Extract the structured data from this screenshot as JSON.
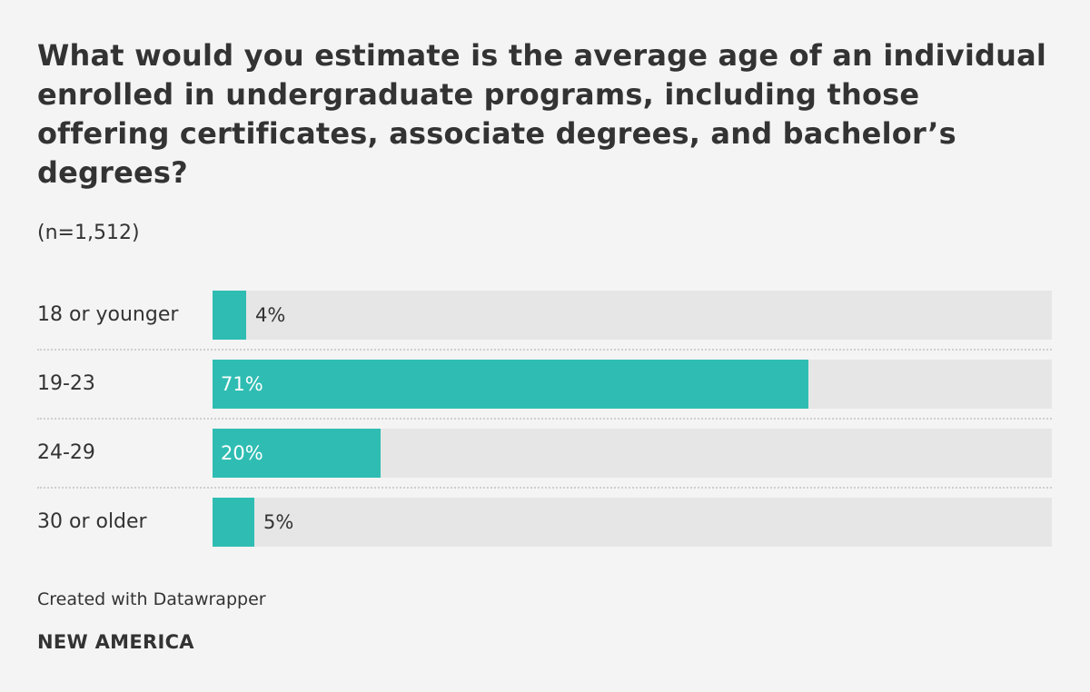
{
  "chart_data": {
    "type": "bar",
    "orientation": "horizontal",
    "title": "What would you estimate is the average age of an individual enrolled in undergraduate programs, including those offering certificates, associate degrees, and bachelor’s degrees?",
    "subtitle": "(n=1,512)",
    "categories": [
      "18 or younger",
      "19-23",
      "24-29",
      "30 or older"
    ],
    "values": [
      4,
      71,
      20,
      5
    ],
    "value_labels": [
      "4%",
      "71%",
      "20%",
      "5%"
    ],
    "unit": "%",
    "xlim": [
      0,
      100
    ],
    "grid": false,
    "legend": "none"
  },
  "colors": {
    "bar": "#2fbdb3",
    "track": "#e6e6e6",
    "background": "#f4f4f4",
    "text": "#333333",
    "label_inside": "#ffffff"
  },
  "footer": {
    "credit": "Created with Datawrapper",
    "brand": "NEW AMERICA"
  }
}
